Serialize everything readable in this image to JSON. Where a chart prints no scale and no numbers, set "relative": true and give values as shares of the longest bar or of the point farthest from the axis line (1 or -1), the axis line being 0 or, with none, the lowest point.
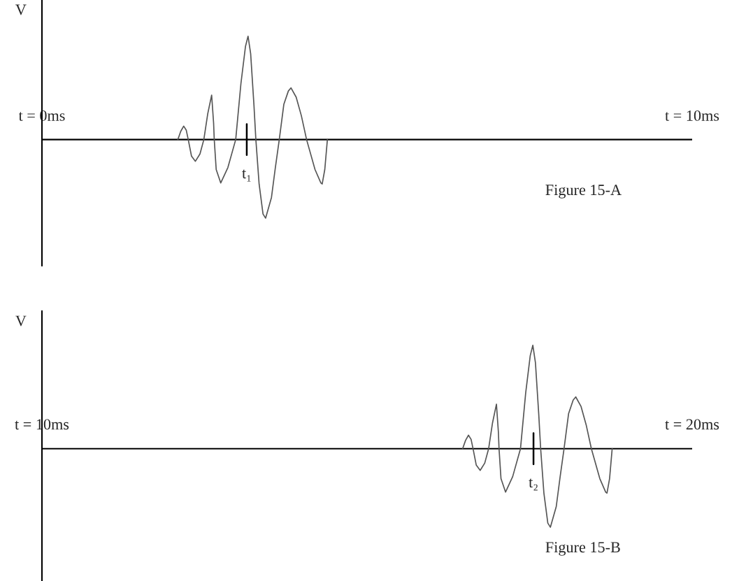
{
  "chart_data": [
    {
      "type": "line",
      "relative": true,
      "ylabel": "V",
      "xlim": [
        0,
        10
      ],
      "xticks": [
        {
          "value": 0,
          "label": "t = 0ms"
        },
        {
          "value": 10,
          "label": "t = 10ms"
        }
      ],
      "grid": false,
      "legend": false,
      "tick_labels": "x",
      "annotations": [
        "Figure 15-A"
      ],
      "ref_lines": [
        {
          "axis": "x",
          "value": 3.15,
          "label": "t₁",
          "color": "#000000"
        }
      ],
      "series": [
        {
          "color": "#555555",
          "x": [
            2.09,
            2.135,
            2.18,
            2.22,
            2.25,
            2.3,
            2.36,
            2.43,
            2.49,
            2.55,
            2.61,
            2.64,
            2.65,
            2.68,
            2.75,
            2.86,
            2.98,
            3.06,
            3.13,
            3.17,
            3.21,
            3.26,
            3.29,
            3.34,
            3.4,
            3.44,
            3.53,
            3.59,
            3.65,
            3.72,
            3.79,
            3.83,
            3.91,
            3.99,
            4.07,
            4.2,
            4.29,
            4.31,
            4.35,
            4.39
          ],
          "values": [
            0,
            0.08,
            0.13,
            0.09,
            0,
            -0.16,
            -0.21,
            -0.14,
            0,
            0.25,
            0.43,
            0.16,
            0,
            -0.29,
            -0.42,
            -0.27,
            0,
            0.54,
            0.9,
            1,
            0.83,
            0.34,
            0,
            -0.43,
            -0.72,
            -0.76,
            -0.56,
            -0.27,
            0,
            0.34,
            0.47,
            0.5,
            0.41,
            0.23,
            0,
            -0.29,
            -0.42,
            -0.43,
            -0.29,
            0
          ]
        }
      ]
    },
    {
      "type": "line",
      "relative": true,
      "ylabel": "V",
      "xlim": [
        10,
        20
      ],
      "xticks": [
        {
          "value": 10,
          "label": "t = 10ms"
        },
        {
          "value": 20,
          "label": "t = 20ms"
        }
      ],
      "grid": false,
      "legend": false,
      "tick_labels": "x",
      "annotations": [
        "Figure 15-B"
      ],
      "ref_lines": [
        {
          "axis": "x",
          "value": 17.56,
          "label": "t₂",
          "color": "#000000"
        }
      ],
      "series": [
        {
          "color": "#555555",
          "x": [
            16.47,
            16.515,
            16.56,
            16.6,
            16.63,
            16.68,
            16.74,
            16.81,
            16.87,
            16.93,
            16.99,
            17.02,
            17.03,
            17.06,
            17.13,
            17.24,
            17.36,
            17.44,
            17.51,
            17.55,
            17.59,
            17.64,
            17.67,
            17.72,
            17.78,
            17.82,
            17.91,
            17.97,
            18.03,
            18.1,
            18.17,
            18.21,
            18.29,
            18.37,
            18.45,
            18.58,
            18.67,
            18.69,
            18.73,
            18.77
          ],
          "values": [
            0,
            0.08,
            0.13,
            0.09,
            0,
            -0.16,
            -0.21,
            -0.14,
            0,
            0.25,
            0.43,
            0.16,
            0,
            -0.29,
            -0.42,
            -0.27,
            0,
            0.54,
            0.9,
            1,
            0.83,
            0.34,
            0,
            -0.43,
            -0.72,
            -0.76,
            -0.56,
            -0.27,
            0,
            0.34,
            0.47,
            0.5,
            0.41,
            0.23,
            0,
            -0.29,
            -0.42,
            -0.43,
            -0.29,
            0
          ]
        }
      ]
    }
  ]
}
